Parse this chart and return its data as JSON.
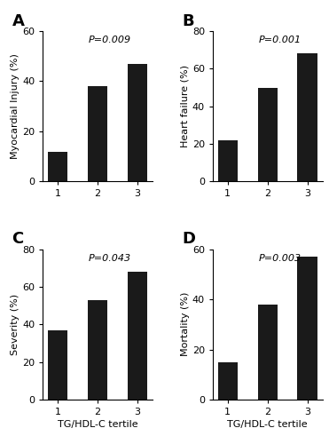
{
  "panels": [
    {
      "label": "A",
      "ylabel": "Myocardial Injury (%)",
      "values": [
        12,
        38,
        47
      ],
      "ylim": [
        0,
        60
      ],
      "yticks": [
        0,
        20,
        40,
        60
      ],
      "pvalue": "P=0.009"
    },
    {
      "label": "B",
      "ylabel": "Heart failure (%)",
      "values": [
        22,
        50,
        68
      ],
      "ylim": [
        0,
        80
      ],
      "yticks": [
        0,
        20,
        40,
        60,
        80
      ],
      "pvalue": "P=0.001"
    },
    {
      "label": "C",
      "ylabel": "Severity (%)",
      "values": [
        37,
        53,
        68
      ],
      "ylim": [
        0,
        80
      ],
      "yticks": [
        0,
        20,
        40,
        60,
        80
      ],
      "pvalue": "P=0.043",
      "xlabel": "TG/HDL-C tertile"
    },
    {
      "label": "D",
      "ylabel": "Mortality (%)",
      "values": [
        15,
        38,
        57
      ],
      "ylim": [
        0,
        60
      ],
      "yticks": [
        0,
        20,
        40,
        60
      ],
      "pvalue": "P=0.003",
      "xlabel": "TG/HDL-C tertile"
    }
  ],
  "categories": [
    "1",
    "2",
    "3"
  ],
  "bar_color": "#1a1a1a",
  "bar_width": 0.5,
  "background_color": "#ffffff",
  "label_fontsize": 13,
  "tick_fontsize": 8,
  "ylabel_fontsize": 8,
  "xlabel_fontsize": 8,
  "pvalue_fontsize": 8
}
